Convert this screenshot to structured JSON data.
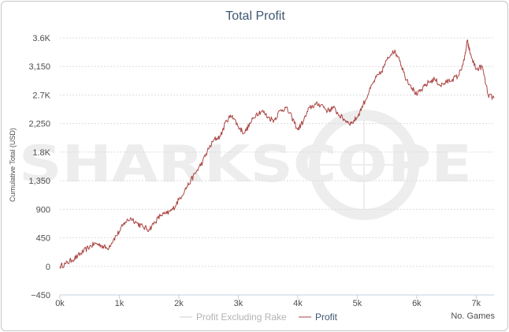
{
  "chart_data": {
    "type": "line",
    "title": "Total Profit",
    "xlabel": "No. Games",
    "ylabel": "Cumulative Total (USD)",
    "xlim": [
      0,
      7300
    ],
    "ylim": [
      -450,
      3600
    ],
    "x_ticks": [
      0,
      1000,
      2000,
      3000,
      4000,
      5000,
      6000,
      7000
    ],
    "x_tick_labels": [
      "0k",
      "1k",
      "2k",
      "3k",
      "4k",
      "5k",
      "6k",
      "7k"
    ],
    "y_ticks": [
      -450,
      0,
      450,
      900,
      1350,
      1800,
      2250,
      2700,
      3150,
      3600
    ],
    "y_tick_labels": [
      "−450",
      "0",
      "450",
      "900",
      "1,350",
      "1.8K",
      "2,250",
      "2.7K",
      "3,150",
      "3.6K"
    ],
    "grid": true,
    "legend_position": "bottom-center",
    "watermark": "SHARKSCOPE",
    "series": [
      {
        "name": "Profit Excluding Rake",
        "color": "#cfcfcf",
        "x": [],
        "values": []
      },
      {
        "name": "Profit",
        "color": "#aa4643",
        "x": [
          0,
          100,
          200,
          300,
          400,
          500,
          600,
          700,
          800,
          900,
          1000,
          1100,
          1200,
          1300,
          1400,
          1500,
          1600,
          1700,
          1800,
          1900,
          2000,
          2100,
          2200,
          2300,
          2400,
          2500,
          2600,
          2700,
          2800,
          2900,
          3000,
          3100,
          3200,
          3300,
          3400,
          3500,
          3600,
          3700,
          3800,
          3900,
          4000,
          4100,
          4200,
          4300,
          4400,
          4500,
          4600,
          4700,
          4800,
          4900,
          5000,
          5100,
          5200,
          5300,
          5400,
          5500,
          5600,
          5700,
          5800,
          5900,
          6000,
          6100,
          6200,
          6300,
          6400,
          6500,
          6600,
          6700,
          6800,
          6850,
          6900,
          7000,
          7100,
          7200,
          7300
        ],
        "values": [
          0,
          40,
          100,
          160,
          240,
          310,
          360,
          330,
          280,
          420,
          550,
          700,
          760,
          680,
          620,
          580,
          700,
          810,
          830,
          900,
          1050,
          1200,
          1350,
          1500,
          1650,
          1850,
          2000,
          2050,
          2300,
          2380,
          2200,
          2100,
          2250,
          2400,
          2450,
          2350,
          2300,
          2450,
          2500,
          2350,
          2150,
          2300,
          2500,
          2550,
          2550,
          2450,
          2500,
          2380,
          2300,
          2250,
          2350,
          2550,
          2750,
          2950,
          3050,
          3250,
          3400,
          3300,
          3000,
          2850,
          2700,
          2800,
          2900,
          2950,
          2850,
          2900,
          2950,
          3000,
          3250,
          3550,
          3350,
          3100,
          3150,
          2700,
          2650
        ]
      }
    ]
  }
}
